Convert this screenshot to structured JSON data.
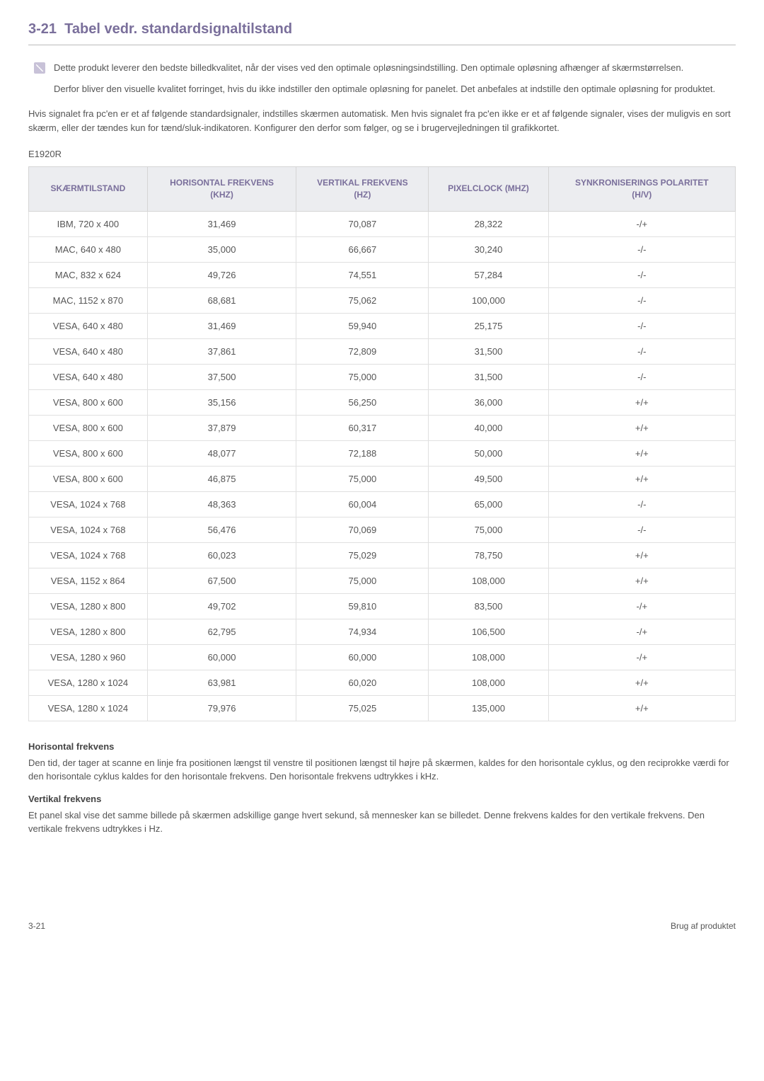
{
  "header": {
    "sectionNumber": "3-21",
    "title": "Tabel vedr. standardsignaltilstand"
  },
  "note": {
    "p1": "Dette produkt leverer den bedste billedkvalitet, når der vises ved den optimale opløsningsindstilling. Den optimale opløsning afhænger af skærmstørrelsen.",
    "p2": "Derfor bliver den visuelle kvalitet forringet, hvis du ikke indstiller den optimale opløsning for panelet. Det anbefales at indstille den optimale opløsning for produktet."
  },
  "intro": "Hvis signalet fra pc'en er et af følgende standardsignaler, indstilles skærmen automatisk. Men hvis signalet fra pc'en ikke er et af følgende signaler, vises der muligvis en sort skærm, eller der tændes kun for tænd/sluk-indikatoren. Konfigurer den derfor som følger, og se i brugervejledningen til grafikkortet.",
  "model": "E1920R",
  "table": {
    "columns": [
      "SKÆRMTILSTAND",
      "HORISONTAL FREKVENS (KHZ)",
      "VERTIKAL FREKVENS (HZ)",
      "PIXELCLOCK (MHZ)",
      "SYNKRONISERINGS POLARITET (H/V)"
    ],
    "headerColorText": "#7a6f9b",
    "headerBg": "#ecedf0",
    "borderColor": "#e0e0e0",
    "cellFontSize": 13,
    "headerFontSize": 12,
    "rows": [
      [
        "IBM, 720 x 400",
        "31,469",
        "70,087",
        "28,322",
        "-/+"
      ],
      [
        "MAC, 640 x 480",
        "35,000",
        "66,667",
        "30,240",
        "-/-"
      ],
      [
        "MAC, 832 x 624",
        "49,726",
        "74,551",
        "57,284",
        "-/-"
      ],
      [
        "MAC, 1152 x 870",
        "68,681",
        "75,062",
        "100,000",
        "-/-"
      ],
      [
        "VESA, 640 x 480",
        "31,469",
        "59,940",
        "25,175",
        "-/-"
      ],
      [
        "VESA, 640 x 480",
        "37,861",
        "72,809",
        "31,500",
        "-/-"
      ],
      [
        "VESA, 640 x 480",
        "37,500",
        "75,000",
        "31,500",
        "-/-"
      ],
      [
        "VESA, 800 x 600",
        "35,156",
        "56,250",
        "36,000",
        "+/+"
      ],
      [
        "VESA, 800 x 600",
        "37,879",
        "60,317",
        "40,000",
        "+/+"
      ],
      [
        "VESA, 800 x 600",
        "48,077",
        "72,188",
        "50,000",
        "+/+"
      ],
      [
        "VESA, 800 x 600",
        "46,875",
        "75,000",
        "49,500",
        "+/+"
      ],
      [
        "VESA, 1024 x 768",
        "48,363",
        "60,004",
        "65,000",
        "-/-"
      ],
      [
        "VESA, 1024 x 768",
        "56,476",
        "70,069",
        "75,000",
        "-/-"
      ],
      [
        "VESA, 1024 x 768",
        "60,023",
        "75,029",
        "78,750",
        "+/+"
      ],
      [
        "VESA, 1152 x 864",
        "67,500",
        "75,000",
        "108,000",
        "+/+"
      ],
      [
        "VESA, 1280 x 800",
        "49,702",
        "59,810",
        "83,500",
        "-/+"
      ],
      [
        "VESA, 1280 x 800",
        "62,795",
        "74,934",
        "106,500",
        "-/+"
      ],
      [
        "VESA, 1280 x 960",
        "60,000",
        "60,000",
        "108,000",
        "-/+"
      ],
      [
        "VESA, 1280 x 1024",
        "63,981",
        "60,020",
        "108,000",
        "+/+"
      ],
      [
        "VESA, 1280 x 1024",
        "79,976",
        "75,025",
        "135,000",
        "+/+"
      ]
    ]
  },
  "defs": {
    "h1": "Horisontal frekvens",
    "p1": "Den tid, der tager at scanne en linje fra positionen længst til venstre til positionen længst til højre på skærmen, kaldes for den horisontale cyklus, og den reciprokke værdi for den horisontale cyklus kaldes for den horisontale frekvens. Den horisontale frekvens udtrykkes i kHz.",
    "h2": "Vertikal frekvens",
    "p2": "Et panel skal vise det samme billede på skærmen adskillige gange hvert sekund, så mennesker kan se billedet. Denne frekvens kaldes for den vertikale frekvens. Den vertikale frekvens udtrykkes i Hz."
  },
  "footer": {
    "left": "3-21",
    "right": "Brug af produktet"
  },
  "colors": {
    "accent": "#7a6f9b",
    "bodyText": "#555555",
    "background": "#ffffff"
  }
}
